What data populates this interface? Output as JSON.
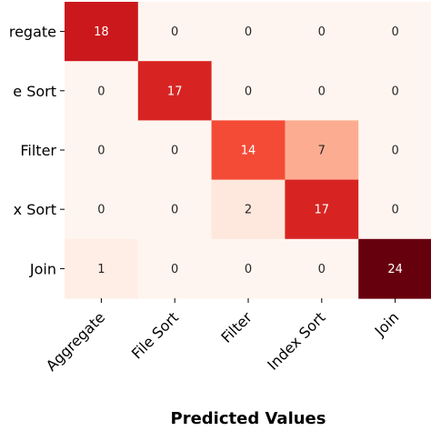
{
  "chart_data": {
    "type": "heatmap",
    "xlabel": "Predicted Values",
    "ylabel": "",
    "x_categories": [
      "Aggregate",
      "File Sort",
      "Filter",
      "Index Sort",
      "Join"
    ],
    "y_categories": [
      "Aggregate",
      "File Sort",
      "Filter",
      "Index Sort",
      "Join"
    ],
    "y_tick_labels_visible": [
      "regate",
      "e Sort",
      "Filter",
      "x Sort",
      "Join"
    ],
    "values": [
      [
        18,
        0,
        0,
        0,
        0
      ],
      [
        0,
        17,
        0,
        0,
        0
      ],
      [
        0,
        0,
        14,
        7,
        0
      ],
      [
        0,
        0,
        2,
        17,
        0
      ],
      [
        1,
        0,
        0,
        0,
        24
      ]
    ],
    "colormap": "Reds",
    "vmin": 0,
    "vmax": 24,
    "grid": false
  }
}
